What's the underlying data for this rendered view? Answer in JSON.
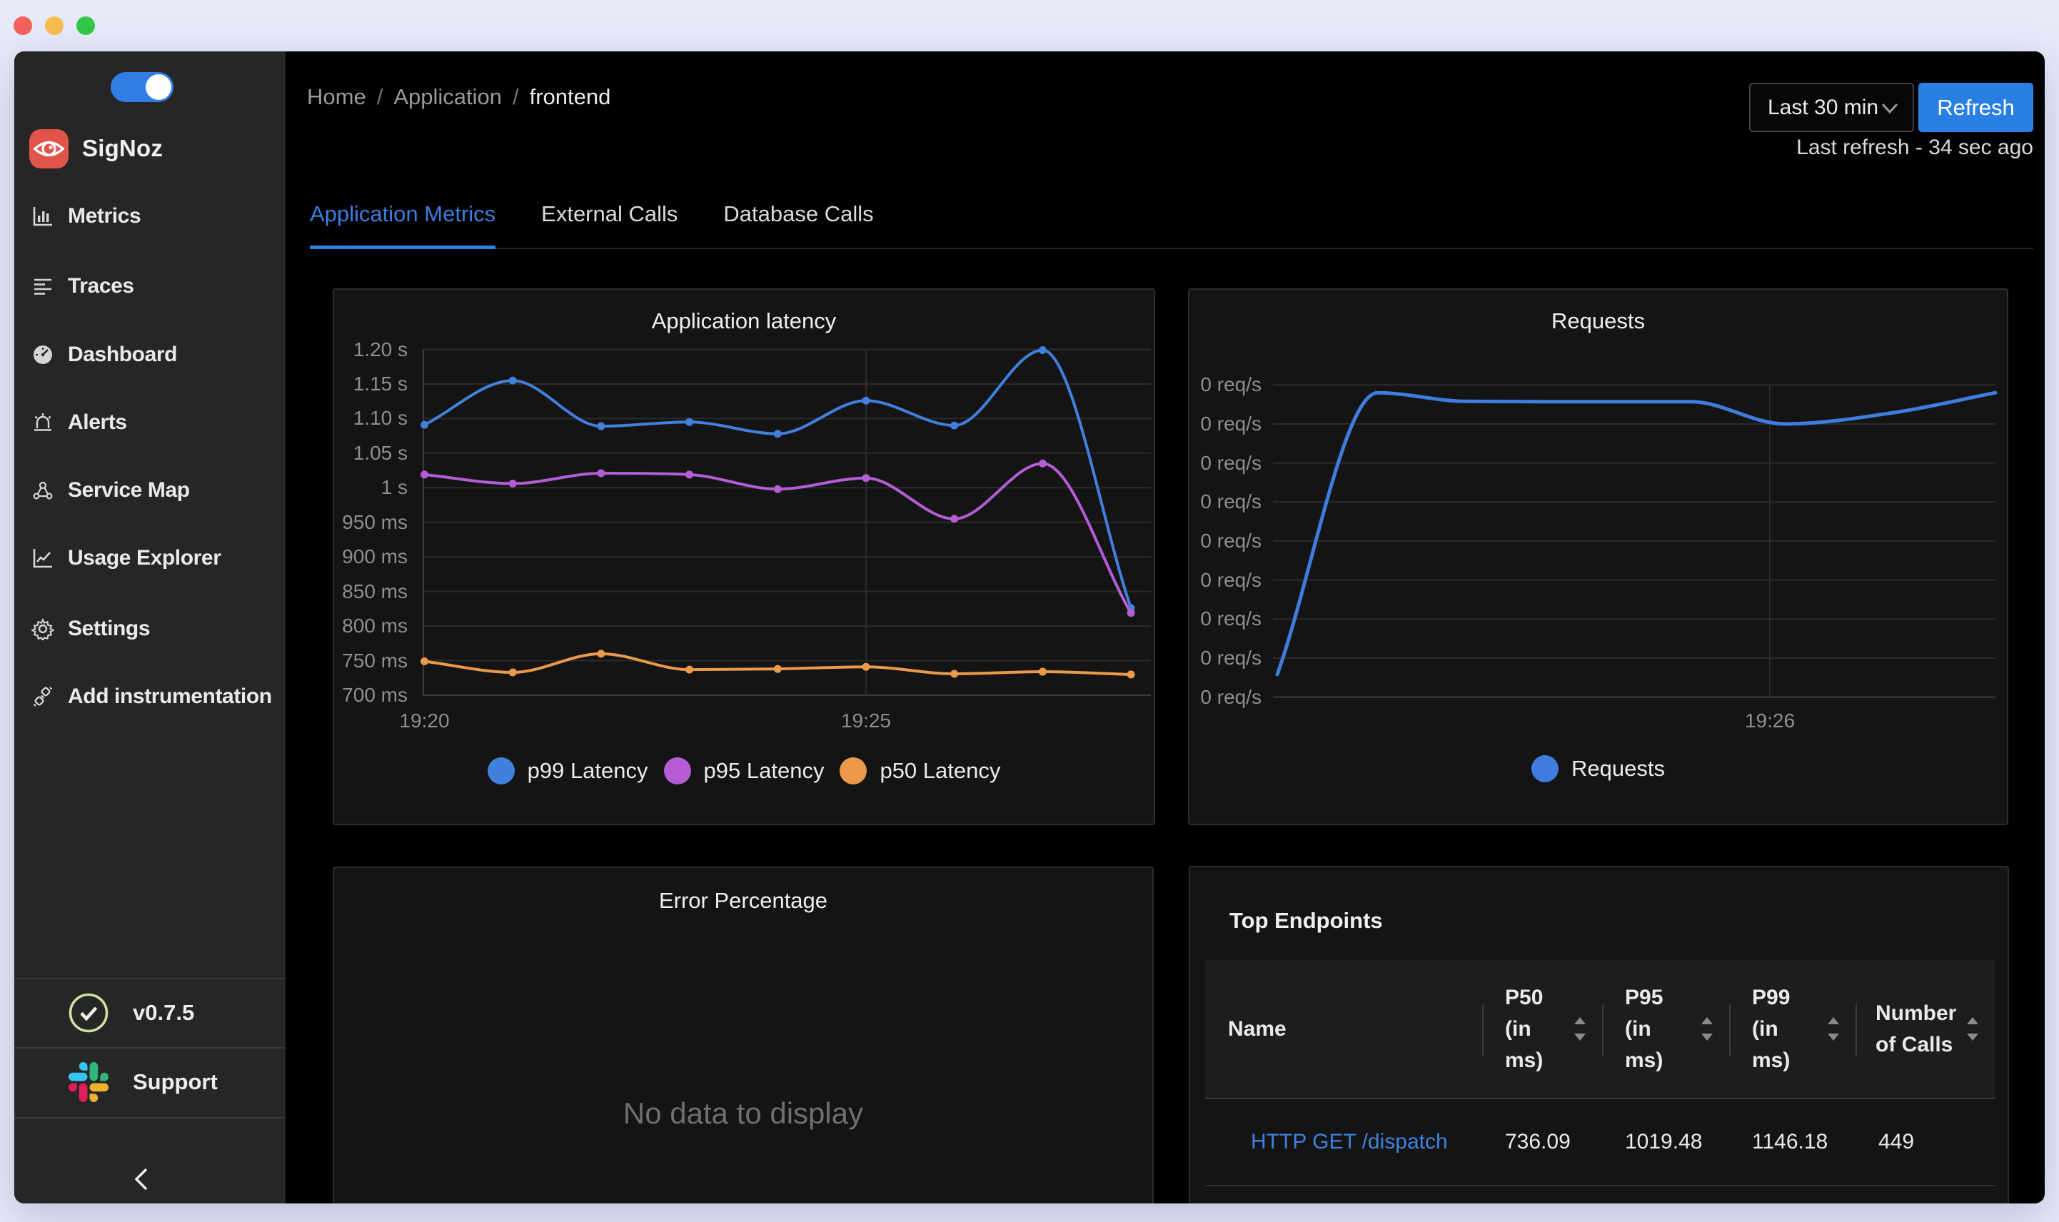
{
  "window": {
    "traffic_lights": [
      {
        "name": "close",
        "color": "#f4625d"
      },
      {
        "name": "minimize",
        "color": "#f9bd4e"
      },
      {
        "name": "zoom",
        "color": "#32c746"
      }
    ]
  },
  "colors": {
    "desktop_bg": "#e7eaf9",
    "page_bg": "#000000",
    "sidebar_bg": "#262626",
    "panel_bg": "#141414",
    "accent_blue": "#2f80e4",
    "link_blue": "#3d82e0",
    "p99_blue": "#4180dc",
    "p95_purple": "#b55cd6",
    "p50_orange": "#ec9a4a",
    "grid_line": "#2b2b2b",
    "axis_text": "#8e8e8e"
  },
  "sidebar": {
    "theme_toggle_on": true,
    "brand": "SigNoz",
    "items": [
      {
        "label": "Metrics",
        "icon": "bar-chart-icon"
      },
      {
        "label": "Traces",
        "icon": "align-left-icon"
      },
      {
        "label": "Dashboard",
        "icon": "dashboard-gauge-icon"
      },
      {
        "label": "Alerts",
        "icon": "alert-siren-icon"
      },
      {
        "label": "Service Map",
        "icon": "deployment-unit-icon"
      },
      {
        "label": "Usage Explorer",
        "icon": "line-chart-icon"
      },
      {
        "label": "Settings",
        "icon": "gear-icon"
      },
      {
        "label": "Add instrumentation",
        "icon": "api-plug-icon"
      }
    ],
    "version": "v0.7.5",
    "support": "Support"
  },
  "header": {
    "breadcrumb": [
      "Home",
      "Application",
      "frontend"
    ],
    "breadcrumb_separator": "/",
    "time_range": "Last 30 min",
    "refresh": "Refresh",
    "last_refresh": "Last refresh - 34 sec ago"
  },
  "tabs": [
    {
      "label": "Application Metrics",
      "active": true
    },
    {
      "label": "External Calls",
      "active": false
    },
    {
      "label": "Database Calls",
      "active": false
    }
  ],
  "chart_data": [
    {
      "id": "application-latency",
      "type": "line",
      "title": "Application latency",
      "x": [
        "19:20",
        "19:21",
        "19:22",
        "19:23",
        "19:24",
        "19:25",
        "19:26",
        "19:27",
        "19:28"
      ],
      "x_tick_labels_shown": [
        "19:20",
        "19:25"
      ],
      "y_tick_labels": [
        "1.20 s",
        "1.15 s",
        "1.10 s",
        "1.05 s",
        "1 s",
        "950 ms",
        "900 ms",
        "850 ms",
        "800 ms",
        "750 ms",
        "700 ms"
      ],
      "ylim_ms": [
        700,
        1200
      ],
      "grid": true,
      "legend_position": "bottom",
      "series": [
        {
          "name": "p99 Latency",
          "color": "#4180dc",
          "values_ms": [
            1091,
            1155,
            1089,
            1095,
            1078,
            1126,
            1090,
            1199,
            826
          ]
        },
        {
          "name": "p95 Latency",
          "color": "#b55cd6",
          "values_ms": [
            1019,
            1006,
            1021,
            1019,
            998,
            1014,
            955,
            1035,
            819
          ]
        },
        {
          "name": "p50 Latency",
          "color": "#ec9a4a",
          "values_ms": [
            749,
            733,
            760,
            737,
            738,
            741,
            731,
            734,
            730
          ]
        }
      ]
    },
    {
      "id": "requests",
      "type": "line",
      "title": "Requests",
      "y_tick_labels": [
        "0 req/s",
        "0 req/s",
        "0 req/s",
        "0 req/s",
        "0 req/s",
        "0 req/s",
        "0 req/s",
        "0 req/s",
        "0 req/s"
      ],
      "x_tick_labels_shown": [
        "19:26"
      ],
      "grid": true,
      "legend_position": "bottom",
      "series": [
        {
          "name": "Requests",
          "color": "#3e7cdf",
          "points_est": [
            {
              "t": 0.006,
              "v": 0.58
            },
            {
              "t": 0.145,
              "v": 7.8
            },
            {
              "t": 0.266,
              "v": 7.58
            },
            {
              "t": 0.414,
              "v": 7.57
            },
            {
              "t": 0.579,
              "v": 7.57
            },
            {
              "t": 0.708,
              "v": 7.0
            },
            {
              "t": 0.859,
              "v": 7.29
            },
            {
              "t": 1.0,
              "v": 7.8
            }
          ]
        }
      ]
    }
  ],
  "panels": {
    "error": {
      "title": "Error Percentage",
      "empty_text": "No data to display"
    },
    "endpoints": {
      "title": "Top Endpoints",
      "columns": [
        {
          "label": "Name",
          "sortable": false
        },
        {
          "label": "P50 (in ms)",
          "sortable": true
        },
        {
          "label": "P95 (in ms)",
          "sortable": true
        },
        {
          "label": "P99 (in ms)",
          "sortable": true
        },
        {
          "label": "Number of Calls",
          "sortable": true
        }
      ],
      "rows": [
        {
          "name": "HTTP GET /dispatch",
          "p50": "736.09",
          "p95": "1019.48",
          "p99": "1146.18",
          "calls": "449"
        }
      ]
    }
  }
}
